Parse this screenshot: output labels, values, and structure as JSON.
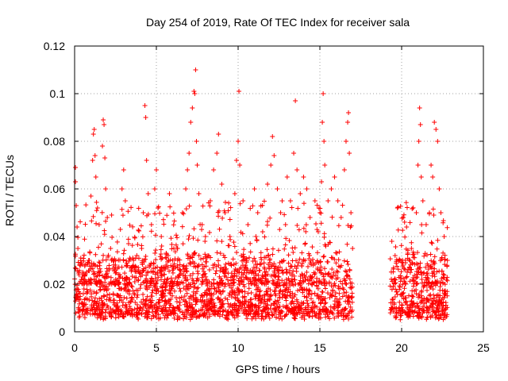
{
  "chart_data": {
    "type": "scatter",
    "title": "Day 254 of 2019, Rate Of TEC Index for receiver sala",
    "xlabel": "GPS time / hours",
    "ylabel": "ROTI / TECUs",
    "xlim": [
      0,
      25
    ],
    "ylim": [
      0,
      0.12
    ],
    "xticks": [
      0,
      5,
      10,
      15,
      20,
      25
    ],
    "xtick_labels": [
      "0",
      "5",
      "10",
      "15",
      "20",
      "25"
    ],
    "yticks": [
      0,
      0.02,
      0.04,
      0.06,
      0.08,
      0.1,
      0.12
    ],
    "ytick_labels": [
      "0",
      "0.02",
      "0.04",
      "0.06",
      "0.08",
      "0.1",
      "0.12"
    ],
    "grid": true,
    "marker": "+",
    "marker_color": "#ff0000",
    "data_gaps_hours": [
      [
        17.0,
        19.3
      ],
      [
        22.8,
        25
      ]
    ],
    "series": [
      {
        "name": "ROTI",
        "points": [
          [
            0.05,
            0.063
          ],
          [
            0.05,
            0.069
          ],
          [
            0.1,
            0.053
          ],
          [
            0.15,
            0.044
          ],
          [
            0.2,
            0.035
          ],
          [
            0.3,
            0.028
          ],
          [
            0.5,
            0.025
          ],
          [
            0.7,
            0.021
          ],
          [
            0.9,
            0.03
          ],
          [
            1.0,
            0.057
          ],
          [
            1.1,
            0.072
          ],
          [
            1.15,
            0.083
          ],
          [
            1.2,
            0.085
          ],
          [
            1.25,
            0.074
          ],
          [
            1.3,
            0.065
          ],
          [
            1.4,
            0.052
          ],
          [
            1.5,
            0.045
          ],
          [
            1.7,
            0.078
          ],
          [
            1.75,
            0.089
          ],
          [
            1.8,
            0.087
          ],
          [
            1.85,
            0.073
          ],
          [
            1.9,
            0.06
          ],
          [
            2.0,
            0.048
          ],
          [
            2.2,
            0.035
          ],
          [
            2.5,
            0.028
          ],
          [
            2.8,
            0.043
          ],
          [
            2.9,
            0.06
          ],
          [
            3.0,
            0.068
          ],
          [
            3.1,
            0.055
          ],
          [
            3.3,
            0.037
          ],
          [
            3.6,
            0.03
          ],
          [
            3.9,
            0.026
          ],
          [
            4.1,
            0.035
          ],
          [
            4.2,
            0.05
          ],
          [
            4.3,
            0.095
          ],
          [
            4.35,
            0.09
          ],
          [
            4.4,
            0.072
          ],
          [
            4.5,
            0.058
          ],
          [
            4.7,
            0.045
          ],
          [
            4.9,
            0.06
          ],
          [
            5.0,
            0.068
          ],
          [
            5.1,
            0.052
          ],
          [
            5.3,
            0.04
          ],
          [
            5.6,
            0.033
          ],
          [
            5.8,
            0.058
          ],
          [
            6.0,
            0.03
          ],
          [
            6.3,
            0.035
          ],
          [
            6.6,
            0.05
          ],
          [
            6.8,
            0.06
          ],
          [
            6.9,
            0.068
          ],
          [
            7.0,
            0.075
          ],
          [
            7.1,
            0.088
          ],
          [
            7.2,
            0.094
          ],
          [
            7.3,
            0.101
          ],
          [
            7.35,
            0.1
          ],
          [
            7.4,
            0.11
          ],
          [
            7.45,
            0.08
          ],
          [
            7.5,
            0.07
          ],
          [
            7.6,
            0.058
          ],
          [
            7.8,
            0.045
          ],
          [
            8.0,
            0.04
          ],
          [
            8.3,
            0.055
          ],
          [
            8.5,
            0.068
          ],
          [
            8.7,
            0.075
          ],
          [
            8.8,
            0.083
          ],
          [
            9.0,
            0.062
          ],
          [
            9.2,
            0.05
          ],
          [
            9.5,
            0.04
          ],
          [
            9.8,
            0.058
          ],
          [
            9.9,
            0.072
          ],
          [
            10.0,
            0.08
          ],
          [
            10.05,
            0.101
          ],
          [
            10.1,
            0.07
          ],
          [
            10.3,
            0.055
          ],
          [
            10.6,
            0.045
          ],
          [
            11.0,
            0.06
          ],
          [
            11.2,
            0.05
          ],
          [
            11.5,
            0.042
          ],
          [
            11.8,
            0.062
          ],
          [
            12.0,
            0.07
          ],
          [
            12.1,
            0.082
          ],
          [
            12.2,
            0.074
          ],
          [
            12.4,
            0.06
          ],
          [
            12.6,
            0.05
          ],
          [
            12.9,
            0.045
          ],
          [
            13.0,
            0.065
          ],
          [
            13.2,
            0.055
          ],
          [
            13.4,
            0.075
          ],
          [
            13.5,
            0.097
          ],
          [
            13.6,
            0.068
          ],
          [
            13.8,
            0.058
          ],
          [
            14.0,
            0.065
          ],
          [
            14.2,
            0.06
          ],
          [
            14.4,
            0.048
          ],
          [
            14.7,
            0.055
          ],
          [
            14.9,
            0.042
          ],
          [
            15.0,
            0.05
          ],
          [
            15.1,
            0.063
          ],
          [
            15.15,
            0.088
          ],
          [
            15.2,
            0.1
          ],
          [
            15.25,
            0.08
          ],
          [
            15.3,
            0.07
          ],
          [
            15.5,
            0.055
          ],
          [
            15.7,
            0.06
          ],
          [
            15.9,
            0.065
          ],
          [
            16.1,
            0.055
          ],
          [
            16.3,
            0.048
          ],
          [
            16.5,
            0.068
          ],
          [
            16.6,
            0.08
          ],
          [
            16.7,
            0.088
          ],
          [
            16.75,
            0.092
          ],
          [
            16.8,
            0.075
          ],
          [
            16.9,
            0.05
          ],
          [
            17.0,
            0.035
          ],
          [
            19.4,
            0.038
          ],
          [
            19.6,
            0.032
          ],
          [
            19.9,
            0.03
          ],
          [
            20.1,
            0.048
          ],
          [
            20.3,
            0.044
          ],
          [
            20.6,
            0.035
          ],
          [
            20.9,
            0.05
          ],
          [
            21.0,
            0.07
          ],
          [
            21.05,
            0.08
          ],
          [
            21.1,
            0.094
          ],
          [
            21.15,
            0.087
          ],
          [
            21.2,
            0.065
          ],
          [
            21.3,
            0.055
          ],
          [
            21.5,
            0.045
          ],
          [
            21.7,
            0.05
          ],
          [
            21.8,
            0.07
          ],
          [
            21.9,
            0.065
          ],
          [
            22.0,
            0.088
          ],
          [
            22.1,
            0.085
          ],
          [
            22.2,
            0.08
          ],
          [
            22.3,
            0.06
          ],
          [
            22.4,
            0.05
          ],
          [
            22.6,
            0.04
          ],
          [
            22.8,
            0.03
          ]
        ],
        "baseline_band": {
          "note": "dense cloud of ROTI values present across all observed hours",
          "typical_range": [
            0.005,
            0.03
          ]
        }
      }
    ]
  }
}
